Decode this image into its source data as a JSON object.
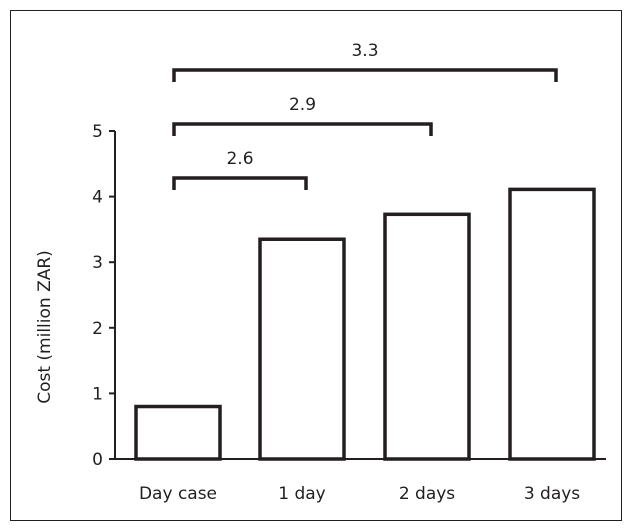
{
  "chart_data": {
    "type": "bar",
    "categories": [
      "Day case",
      "1 day",
      "2 days",
      "3 days"
    ],
    "values": [
      0.8,
      3.35,
      3.73,
      4.11
    ],
    "ylabel": "Cost (million ZAR)",
    "xlabel": "",
    "ylim": [
      0,
      5
    ],
    "yticks": [
      "0",
      "1",
      "2",
      "3",
      "4",
      "5"
    ],
    "grid": false,
    "annotations": [
      {
        "from": "Day case",
        "to": "1 day",
        "label": "2.6"
      },
      {
        "from": "Day case",
        "to": "2 days",
        "label": "2.9"
      },
      {
        "from": "Day case",
        "to": "3 days",
        "label": "3.3"
      }
    ],
    "colors": {
      "bar_fill": "#ffffff",
      "stroke": "#231f20"
    }
  }
}
